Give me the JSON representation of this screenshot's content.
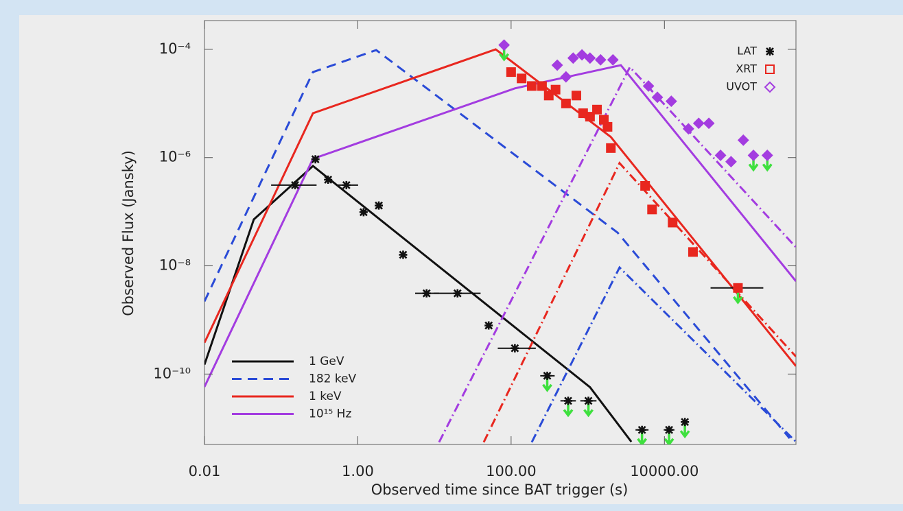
{
  "chart_data": {
    "type": "line",
    "x_label": "Observed time since BAT trigger (s)",
    "y_label": "Observed Flux (Jansky)",
    "xscale": "log",
    "yscale": "log",
    "grid": false,
    "xlim": [
      0.01,
      520000
    ],
    "ylim": [
      5e-12,
      0.00034
    ],
    "xticks": [
      {
        "value": 0.01,
        "label": "0.01"
      },
      {
        "value": 1,
        "label": "1.00"
      },
      {
        "value": 100,
        "label": "100.00"
      },
      {
        "value": 10000,
        "label": "10000.00"
      }
    ],
    "yticks": [
      {
        "value": 1e-10,
        "label": "10⁻¹⁰"
      },
      {
        "value": 1e-08,
        "label": "10⁻⁸"
      },
      {
        "value": 1e-06,
        "label": "10⁻⁶"
      },
      {
        "value": 0.0001,
        "label": "10⁻⁴"
      }
    ],
    "legend": {
      "lines": "lower left",
      "markers": "upper right"
    },
    "series": [
      {
        "kind": "line",
        "name": "1 GeV",
        "color": "#111111",
        "style": "solid",
        "x": [
          0.01,
          0.044,
          0.26,
          1070,
          3700
        ],
        "values": [
          1.5e-10,
          7.2e-08,
          7e-07,
          5.7e-11,
          5.6e-12
        ]
      },
      {
        "kind": "line",
        "name": "182 keV",
        "color": "#2a4bd7",
        "style": "dashed",
        "x": [
          0.01,
          0.26,
          1.74,
          2450,
          430000
        ],
        "values": [
          2.2e-09,
          3.8e-05,
          9.7e-05,
          4.1e-08,
          6.5e-12
        ]
      },
      {
        "kind": "line",
        "name": "1 keV",
        "color": "#e8271f",
        "style": "solid",
        "x": [
          0.01,
          0.26,
          63,
          2000,
          520000
        ],
        "values": [
          3.8e-10,
          6.6e-06,
          0.0001,
          2.4e-06,
          1.4e-10
        ]
      },
      {
        "kind": "line",
        "name": "10¹⁵ Hz",
        "color": "#a33ce0",
        "style": "solid",
        "x": [
          0.01,
          0.26,
          112,
          2700,
          520000
        ],
        "values": [
          5.8e-11,
          9.5e-07,
          1.9e-05,
          5.1e-05,
          5.2e-09
        ]
      },
      {
        "kind": "line",
        "color": "#a33ce0",
        "style": "dashdot",
        "x": [
          11.5,
          3550,
          520000
        ],
        "values": [
          5.5e-12,
          4.7e-05,
          2.2e-08
        ]
      },
      {
        "kind": "line",
        "color": "#e8271f",
        "style": "dashdot",
        "x": [
          44,
          2600,
          520000
        ],
        "values": [
          5.5e-12,
          7.9e-07,
          2.1e-10
        ]
      },
      {
        "kind": "line",
        "color": "#2a4bd7",
        "style": "dashdot",
        "x": [
          186,
          2600,
          520000
        ],
        "values": [
          5.5e-12,
          9.3e-09,
          5.6e-12
        ]
      },
      {
        "kind": "points",
        "name": "LAT",
        "color": "#111111",
        "marker": "star",
        "x": [
          0.152,
          0.28,
          0.41,
          0.71,
          1.19,
          1.88,
          3.9,
          7.9,
          20,
          51,
          112,
          296,
          555,
          1020,
          5100,
          11500,
          18500
        ],
        "values": [
          3.1e-07,
          9.3e-07,
          3.9e-07,
          3.1e-07,
          9.8e-08,
          1.3e-07,
          1.6e-08,
          3.1e-09,
          3.1e-09,
          7.9e-10,
          3e-10,
          9.3e-11,
          3.2e-11,
          3.2e-11,
          9.3e-12,
          9.3e-12,
          1.3e-11
        ],
        "xerr_lo": [
          0.074,
          null,
          null,
          0.52,
          null,
          null,
          null,
          5.6,
          9.8,
          null,
          67,
          240,
          440,
          800,
          4200,
          9800,
          16500
        ],
        "xerr_hi": [
          0.29,
          null,
          null,
          1.01,
          null,
          null,
          null,
          11.5,
          40,
          null,
          210,
          370,
          700,
          1300,
          6200,
          13500,
          20500
        ],
        "upper_limits": [
          false,
          false,
          false,
          false,
          false,
          false,
          false,
          false,
          false,
          false,
          false,
          true,
          true,
          true,
          true,
          true,
          true
        ]
      },
      {
        "kind": "points",
        "name": "XRT",
        "color": "#e8271f",
        "marker": "square",
        "x": [
          100,
          137,
          186,
          253,
          310,
          380,
          520,
          710,
          870,
          1070,
          1320,
          1620,
          1810,
          2000,
          5600,
          6900,
          12800,
          23600,
          91000
        ],
        "values": [
          3.8e-05,
          2.9e-05,
          2.1e-05,
          2.1e-05,
          1.4e-05,
          1.8e-05,
          1e-05,
          1.4e-05,
          6.6e-06,
          5.7e-06,
          7.7e-06,
          5e-06,
          3.7e-06,
          1.5e-06,
          3e-07,
          1.1e-07,
          6.3e-08,
          1.8e-08,
          3.9e-09
        ],
        "xerr_lo": [
          null,
          null,
          null,
          null,
          null,
          null,
          null,
          null,
          null,
          null,
          null,
          null,
          null,
          null,
          null,
          null,
          null,
          null,
          40000
        ],
        "xerr_hi": [
          null,
          null,
          null,
          null,
          null,
          null,
          null,
          null,
          null,
          null,
          null,
          null,
          null,
          null,
          null,
          null,
          null,
          null,
          195000
        ],
        "upper_limits": [
          false,
          false,
          false,
          false,
          false,
          false,
          false,
          false,
          false,
          false,
          false,
          false,
          false,
          false,
          false,
          false,
          false,
          false,
          true
        ]
      },
      {
        "kind": "points",
        "name": "UVOT",
        "color": "#a33ce0",
        "marker": "diamond",
        "x": [
          81,
          400,
          520,
          645,
          840,
          1070,
          1470,
          2130,
          6200,
          8100,
          12300,
          20600,
          28000,
          38000,
          54000,
          74000,
          107000,
          145000,
          220000
        ],
        "values": [
          0.00012,
          5.1e-05,
          3.1e-05,
          6.9e-05,
          7.9e-05,
          6.9e-05,
          6.4e-05,
          6.4e-05,
          2.1e-05,
          1.3e-05,
          1.1e-05,
          3.4e-06,
          4.3e-06,
          4.3e-06,
          1.1e-06,
          8.4e-07,
          2.1e-06,
          1.1e-06,
          1.1e-06
        ],
        "upper_limits": [
          true,
          false,
          false,
          false,
          false,
          false,
          false,
          false,
          false,
          false,
          false,
          false,
          false,
          false,
          false,
          false,
          false,
          true,
          true
        ]
      }
    ]
  }
}
